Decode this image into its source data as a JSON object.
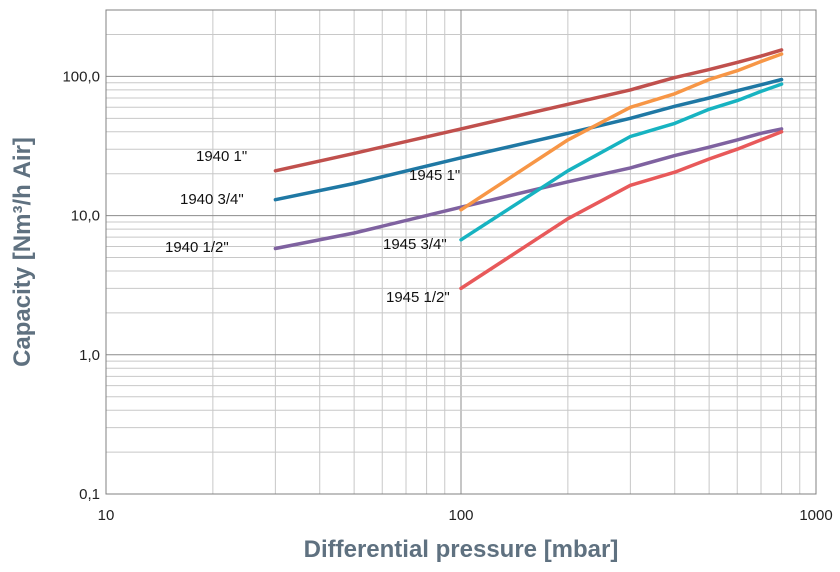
{
  "chart_data": {
    "type": "line",
    "xscale": "log",
    "yscale": "log",
    "xlim": [
      10,
      1000
    ],
    "ylim": [
      0.1,
      300
    ],
    "xlabel": "Differential pressure [mbar]",
    "ylabel": "Capacity [Nm³/h Air]",
    "grid": true,
    "x_ticks": [
      {
        "value": 10,
        "label": "10"
      },
      {
        "value": 100,
        "label": "100"
      },
      {
        "value": 1000,
        "label": "1000"
      }
    ],
    "y_ticks": [
      {
        "value": 0.1,
        "label": "0,1"
      },
      {
        "value": 1,
        "label": "1,0"
      },
      {
        "value": 10,
        "label": "10,0"
      },
      {
        "value": 100,
        "label": "100,0"
      }
    ],
    "series": [
      {
        "name": "1940 1\"",
        "color": "#c0504d",
        "points": [
          [
            30,
            21
          ],
          [
            50,
            28
          ],
          [
            100,
            42
          ],
          [
            200,
            63
          ],
          [
            300,
            80
          ],
          [
            400,
            98
          ],
          [
            500,
            112
          ],
          [
            600,
            126
          ],
          [
            700,
            140
          ],
          [
            800,
            155
          ]
        ]
      },
      {
        "name": "1940 3/4\"",
        "color": "#1f78a4",
        "points": [
          [
            30,
            13
          ],
          [
            50,
            17
          ],
          [
            100,
            26
          ],
          [
            200,
            39
          ],
          [
            300,
            50
          ],
          [
            400,
            61
          ],
          [
            500,
            70
          ],
          [
            600,
            79
          ],
          [
            700,
            87
          ],
          [
            800,
            95
          ]
        ]
      },
      {
        "name": "1940 1/2\"",
        "color": "#7f62a0",
        "points": [
          [
            30,
            5.8
          ],
          [
            50,
            7.5
          ],
          [
            100,
            11.5
          ],
          [
            200,
            17.5
          ],
          [
            300,
            22
          ],
          [
            400,
            27
          ],
          [
            500,
            31
          ],
          [
            600,
            35
          ],
          [
            700,
            39
          ],
          [
            800,
            42
          ]
        ]
      },
      {
        "name": "1945 1\"",
        "color": "#f79646",
        "points": [
          [
            100,
            11
          ],
          [
            200,
            35
          ],
          [
            300,
            60
          ],
          [
            400,
            75
          ],
          [
            500,
            95
          ],
          [
            600,
            110
          ],
          [
            700,
            128
          ],
          [
            800,
            145
          ]
        ]
      },
      {
        "name": "1945 3/4\"",
        "color": "#17b3c1",
        "points": [
          [
            100,
            6.7
          ],
          [
            200,
            21
          ],
          [
            300,
            37
          ],
          [
            400,
            46
          ],
          [
            500,
            58
          ],
          [
            600,
            67
          ],
          [
            700,
            78
          ],
          [
            800,
            88
          ]
        ]
      },
      {
        "name": "1945 1/2\"",
        "color": "#e8595a",
        "points": [
          [
            100,
            3.0
          ],
          [
            200,
            9.5
          ],
          [
            300,
            16.5
          ],
          [
            400,
            20.5
          ],
          [
            500,
            25.5
          ],
          [
            600,
            30
          ],
          [
            700,
            35
          ],
          [
            800,
            40
          ]
        ]
      }
    ]
  }
}
